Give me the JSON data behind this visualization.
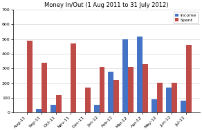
{
  "title": "Money In/Out (1 Aug 2011 to 31 July 2012)",
  "categories": [
    "Aug-11",
    "Sep-11",
    "Oct-11",
    "Nov-11",
    "Dec-11",
    "Jan-12",
    "Feb-12",
    "Mar-12",
    "Apr-12",
    "May-12",
    "Jun-12",
    "Jul-12"
  ],
  "income": [
    0,
    25,
    55,
    0,
    0,
    55,
    280,
    500,
    515,
    90,
    170,
    80
  ],
  "spent": [
    490,
    340,
    120,
    470,
    170,
    310,
    220,
    310,
    330,
    205,
    205,
    460
  ],
  "ylim": [
    0,
    700
  ],
  "yticks": [
    0,
    100,
    200,
    300,
    400,
    500,
    600,
    700
  ],
  "income_color": "#4472C4",
  "spent_color": "#BE4B48",
  "income_label": "Income",
  "spent_label": "Spent",
  "bar_width": 0.38,
  "title_fontsize": 6.0,
  "tick_fontsize": 4.5,
  "legend_fontsize": 4.5,
  "background_color": "#FFFFFF",
  "grid_color": "#D8D8D8"
}
